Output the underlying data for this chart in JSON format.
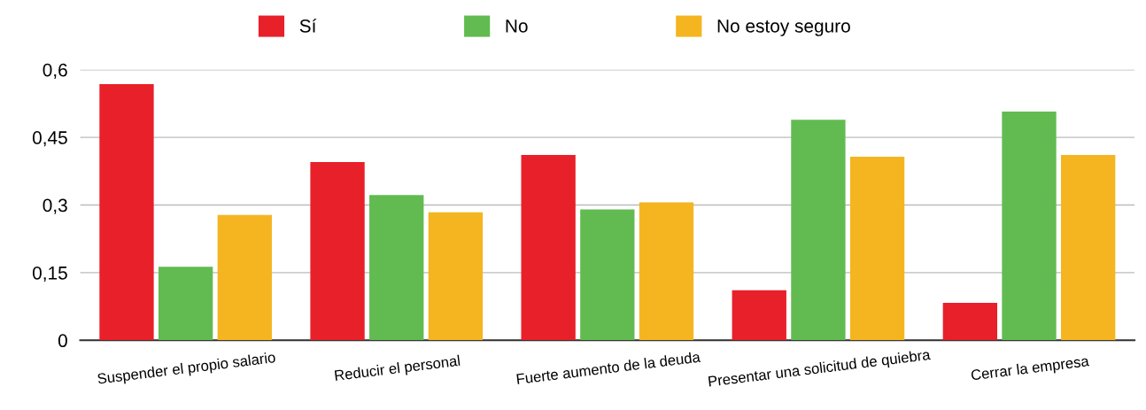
{
  "chart_data": {
    "type": "bar",
    "categories": [
      "Suspender el propio salario",
      "Reducir el personal",
      "Fuerte aumento de la deuda",
      "Presentar una solicitud de quiebra",
      "Cerrar la empresa"
    ],
    "series": [
      {
        "name": "Sí",
        "color": "#e8202a",
        "values": [
          0.568,
          0.395,
          0.411,
          0.111,
          0.083
        ]
      },
      {
        "name": "No",
        "color": "#62bb51",
        "values": [
          0.163,
          0.322,
          0.29,
          0.489,
          0.507
        ]
      },
      {
        "name": "No estoy seguro",
        "color": "#f4b520",
        "values": [
          0.278,
          0.284,
          0.306,
          0.407,
          0.411
        ]
      }
    ],
    "ylim": [
      0,
      0.6
    ],
    "yticks": [
      0,
      {
        "value": 0.15,
        "label": "0,15"
      },
      {
        "value": 0.3,
        "label": "0,3"
      },
      {
        "value": 0.45,
        "label": "0,45"
      },
      {
        "value": 0.6,
        "label": "0,6"
      }
    ],
    "grid": "y",
    "legend": "top"
  }
}
